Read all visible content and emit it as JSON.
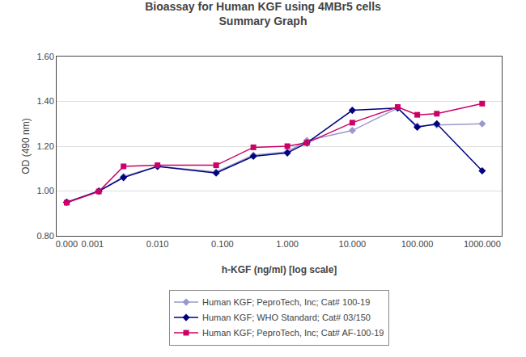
{
  "chart_data": {
    "type": "line",
    "title": "Bioassay for Human KGF using 4MBr5 cells",
    "subtitle": "Summary Graph",
    "x_label": "h-KGF (ng/ml) [log scale]",
    "y_label": "OD (490 nm)",
    "log": "x",
    "xlim": [
      0.00028,
      2000.0
    ],
    "xticks": [
      {
        "value": 0.0004,
        "label": "0.000"
      },
      0.001,
      {
        "value": 0.01,
        "label": "0.010"
      },
      {
        "value": 0.1,
        "label": "0.100"
      },
      {
        "value": 1.0,
        "label": "1.000"
      },
      {
        "value": 10.0,
        "label": "10.000"
      },
      {
        "value": 100.0,
        "label": "100.000"
      },
      {
        "value": 1000.0,
        "label": "1000.000"
      }
    ],
    "ylim": [
      0.8,
      1.6
    ],
    "yticks": [
      {
        "value": 0.8,
        "label": "0.80"
      },
      {
        "value": 1.0,
        "label": "1.00"
      },
      {
        "value": 1.2,
        "label": "1.20"
      },
      {
        "value": 1.4,
        "label": "1.40"
      },
      {
        "value": 1.6,
        "label": "1.60"
      }
    ],
    "grid": "y",
    "legend": "bottom",
    "x": [
      0.0004,
      0.00125,
      0.003,
      0.01,
      0.08,
      0.3,
      1.0,
      2.0,
      10.0,
      50.0,
      100.0,
      200.0,
      1000.0
    ],
    "series": [
      {
        "name": "Human KGF; PeproTech, Inc; Cat# 100-19",
        "color": "#9999cc",
        "marker": "diamond",
        "values": [
          0.95,
          0.998,
          1.065,
          1.11,
          1.085,
          1.16,
          1.175,
          1.225,
          1.27,
          1.37,
          1.29,
          1.295,
          1.3
        ]
      },
      {
        "name": "Human KGF; WHO Standard; Cat# 03/150",
        "color": "#000080",
        "marker": "diamond",
        "values": [
          0.95,
          1.0,
          1.06,
          1.11,
          1.08,
          1.155,
          1.17,
          1.215,
          1.36,
          1.37,
          1.285,
          1.3,
          1.09
        ]
      },
      {
        "name": "Human KGF; PeproTech, Inc; Cat# AF-100-19",
        "color": "#cc0066",
        "marker": "square",
        "values": [
          0.948,
          0.998,
          1.11,
          1.115,
          1.115,
          1.195,
          1.2,
          1.215,
          1.305,
          1.375,
          1.34,
          1.345,
          1.39
        ]
      }
    ]
  }
}
